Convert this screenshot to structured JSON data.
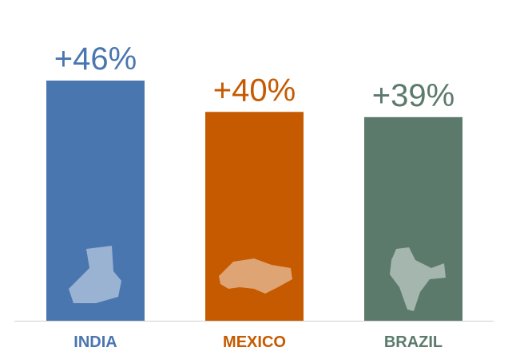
{
  "chart_data": {
    "type": "bar",
    "categories": [
      "INDIA",
      "MEXICO",
      "BRAZIL"
    ],
    "values": [
      46,
      40,
      39
    ],
    "value_labels": [
      "+46%",
      "+40%",
      "+39%"
    ],
    "colors": [
      "#4a76b0",
      "#c55a00",
      "#5b7a6c"
    ]
  }
}
